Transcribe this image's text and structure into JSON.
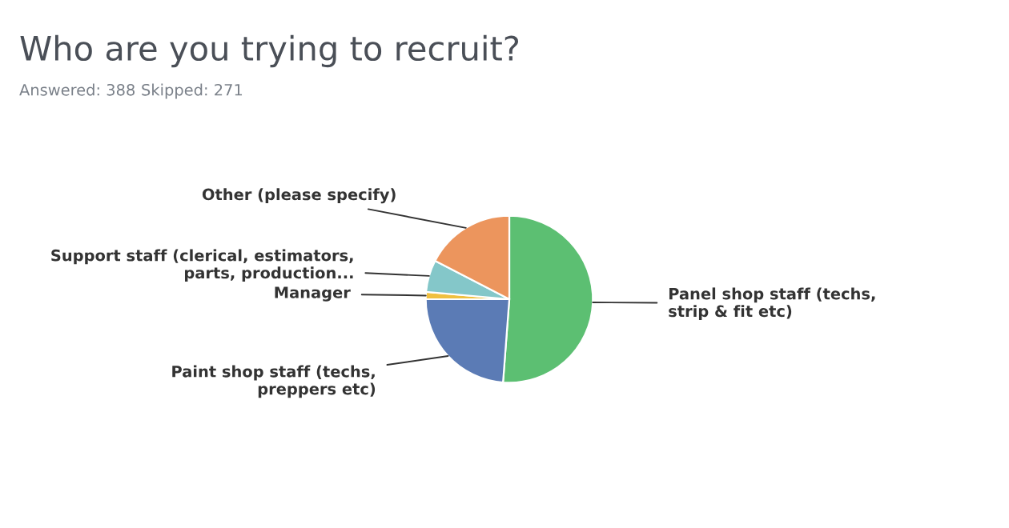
{
  "chart_data": {
    "type": "pie",
    "title": "Who are you trying to recruit?",
    "annotations": [
      "Answered: 388",
      "Skipped: 271"
    ],
    "categories": [
      "Panel shop staff (techs,\nstrip & fit etc)",
      "Paint shop staff (techs,\npreppers etc)",
      "Manager",
      "Support staff (clerical, estimators,\nparts, production...",
      "Other (please specify)"
    ],
    "values": [
      51.2,
      23.8,
      1.4,
      6.2,
      17.4
    ],
    "colors": [
      "#5cbf72",
      "#5b7bb5",
      "#f0c040",
      "#84c7c9",
      "#ec955d"
    ]
  }
}
